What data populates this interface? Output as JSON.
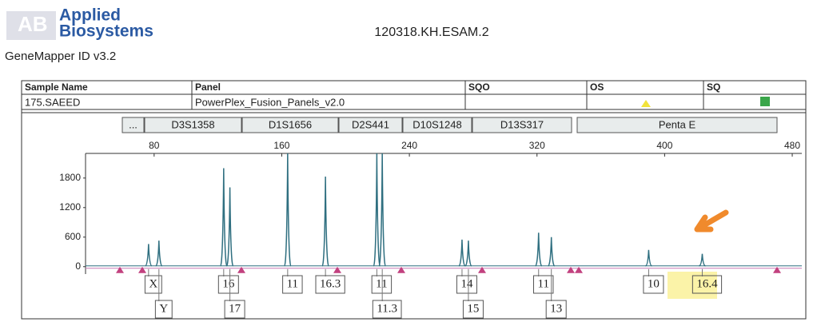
{
  "header": {
    "logo_line1": "Applied",
    "logo_line2": "Biosystems",
    "software": "GeneMapper ID v3.2",
    "file": "120318.KH.ESAM.2"
  },
  "table": {
    "columns": [
      "Sample Name",
      "Panel",
      "SQO",
      "OS",
      "SQ"
    ],
    "sample": "175.SAEED",
    "panel": "PowerPlex_Fusion_Panels_v2.0"
  },
  "markers": [
    "...",
    "D3S1358",
    "D1S1656",
    "D2S441",
    "D10S1248",
    "D13S317",
    "Penta E"
  ],
  "chart_data": {
    "type": "electropherogram",
    "xlim": [
      37,
      486
    ],
    "xticks": [
      80,
      160,
      240,
      320,
      400,
      480
    ],
    "ylim": [
      -150,
      2300
    ],
    "yticks": [
      0,
      600,
      1200,
      1800
    ],
    "categories": [
      "X",
      "Y",
      "16",
      "17",
      "11",
      "16.3",
      "11",
      "11.3",
      "14",
      "15",
      "11",
      "13",
      "10",
      "16.4"
    ],
    "x": [
      76.5,
      83,
      123.6,
      127.5,
      163.7,
      187.4,
      219.6,
      223,
      273,
      277,
      321,
      329,
      390,
      423.6
    ],
    "values": [
      460,
      530,
      2000,
      1610,
      2300,
      1830,
      2300,
      2300,
      550,
      530,
      690,
      600,
      340,
      260
    ],
    "color": "#2f6f80"
  }
}
